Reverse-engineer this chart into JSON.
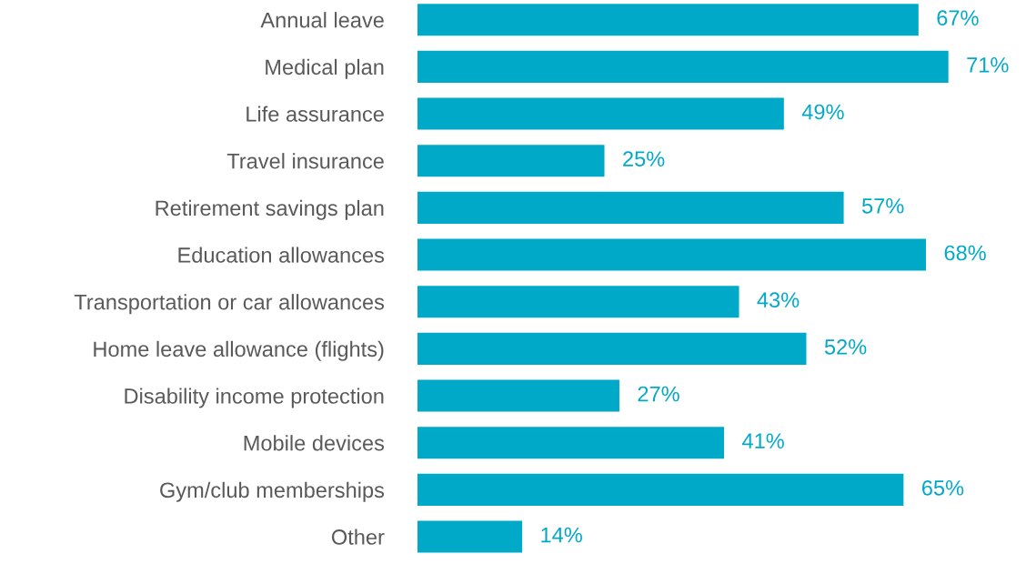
{
  "chart_data": {
    "type": "bar",
    "orientation": "horizontal",
    "categories": [
      "Annual leave",
      "Medical plan",
      "Life assurance",
      "Travel insurance",
      "Retirement savings plan",
      "Education allowances",
      "Transportation or car allowances",
      "Home leave allowance (flights)",
      "Disability income protection",
      "Mobile devices",
      "Gym/club memberships",
      "Other"
    ],
    "values": [
      67,
      71,
      49,
      25,
      57,
      68,
      43,
      52,
      27,
      41,
      65,
      14
    ],
    "value_labels": [
      "67%",
      "71%",
      "49%",
      "25%",
      "57%",
      "68%",
      "43%",
      "52%",
      "27%",
      "41%",
      "65%",
      "14%"
    ],
    "color": "#00a9c8"
  }
}
